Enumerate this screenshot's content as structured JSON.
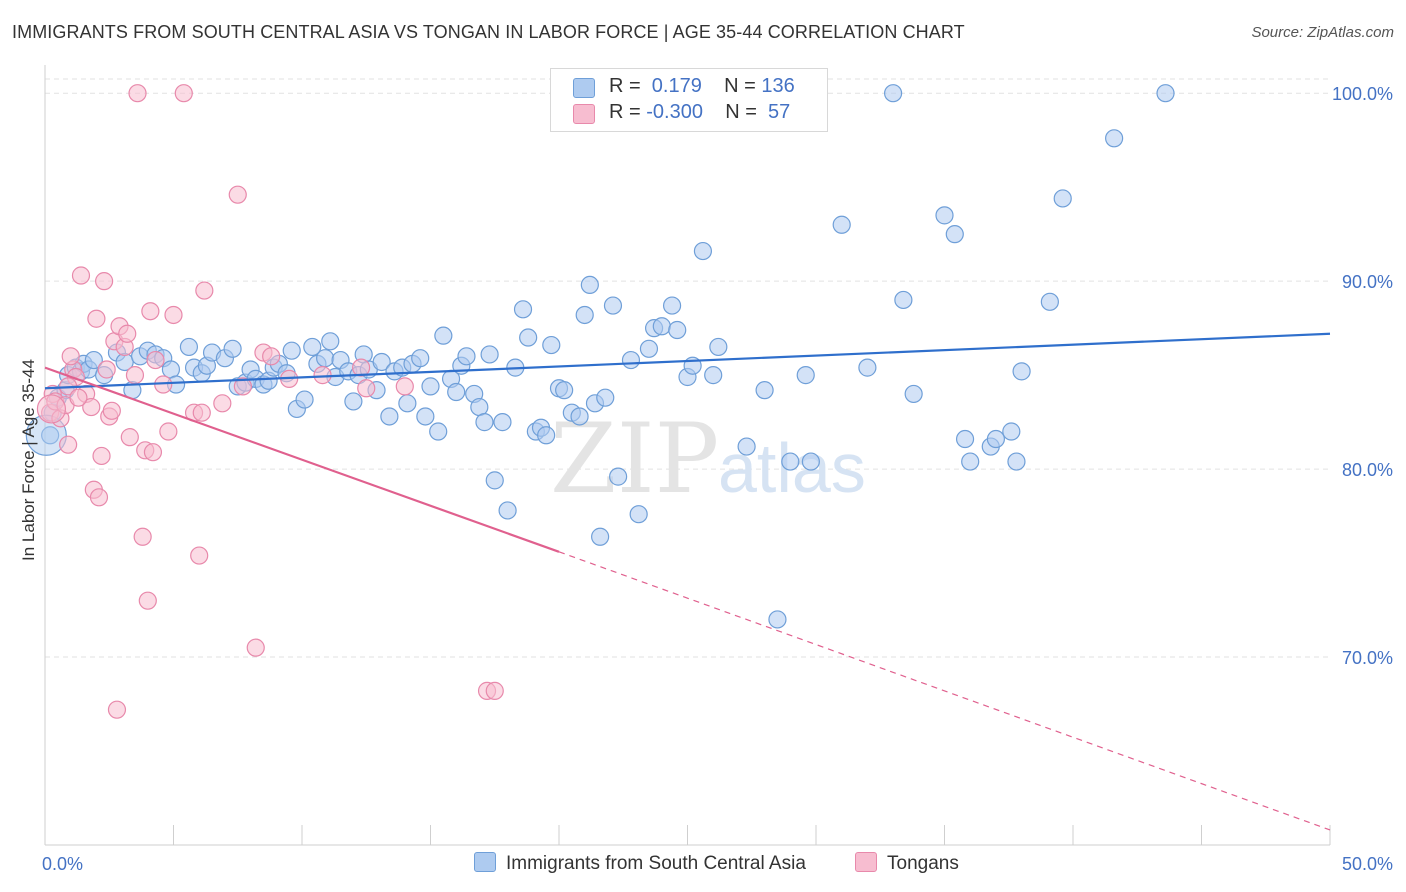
{
  "title": "IMMIGRANTS FROM SOUTH CENTRAL ASIA VS TONGAN IN LABOR FORCE | AGE 35-44 CORRELATION CHART",
  "source": "Source: ZipAtlas.com",
  "watermark": {
    "zip": "ZIP",
    "atlas": "atlas"
  },
  "colors": {
    "blue_fill": "#aecbf0",
    "blue_stroke": "#6f9fd8",
    "blue_line": "#2f6fcc",
    "pink_fill": "#f7bdd0",
    "pink_stroke": "#e889ab",
    "pink_line": "#e0608e",
    "axis_text": "#4472c4",
    "grid": "#e2e2e2"
  },
  "legend": {
    "rows": [
      {
        "r_label": "R = ",
        "r_value": " 0.179",
        "n_label": "N = ",
        "n_value": "136"
      },
      {
        "r_label": "R = ",
        "r_value": "-0.300",
        "n_label": "N = ",
        "n_value": " 57"
      }
    ]
  },
  "bottom_legend": [
    "Immigrants from South Central Asia",
    "Tongans"
  ],
  "chart_data": {
    "type": "scatter",
    "title": "IMMIGRANTS FROM SOUTH CENTRAL ASIA VS TONGAN IN LABOR FORCE | AGE 35-44 CORRELATION CHART",
    "xlabel": "",
    "ylabel": "In Labor Force | Age 35-44",
    "xlim": [
      0,
      50
    ],
    "ylim": [
      60,
      101.5
    ],
    "x_tick_labels": [
      "0.0%",
      "50.0%"
    ],
    "y_ticks": [
      70,
      80,
      90,
      100
    ],
    "y_tick_labels": [
      "70.0%",
      "80.0%",
      "90.0%",
      "100.0%"
    ],
    "grid": true,
    "series": [
      {
        "name": "Immigrants from South Central Asia",
        "R": 0.179,
        "N": 136,
        "trend": {
          "x": [
            0,
            50
          ],
          "y": [
            84.3,
            87.2
          ]
        },
        "points": [
          [
            0.2,
            81.8
          ],
          [
            0.3,
            83.0
          ],
          [
            0.5,
            83.8
          ],
          [
            0.8,
            84.2
          ],
          [
            0.9,
            85.0
          ],
          [
            1.2,
            85.4
          ],
          [
            1.4,
            85.2
          ],
          [
            1.5,
            85.6
          ],
          [
            1.7,
            85.3
          ],
          [
            1.9,
            85.8
          ],
          [
            2.3,
            85.0
          ],
          [
            2.8,
            86.2
          ],
          [
            3.1,
            85.7
          ],
          [
            3.4,
            84.2
          ],
          [
            3.7,
            86.0
          ],
          [
            4.0,
            86.3
          ],
          [
            4.3,
            86.1
          ],
          [
            4.6,
            85.9
          ],
          [
            4.9,
            85.3
          ],
          [
            5.1,
            84.5
          ],
          [
            5.6,
            86.5
          ],
          [
            5.8,
            85.4
          ],
          [
            6.1,
            85.1
          ],
          [
            6.3,
            85.5
          ],
          [
            6.5,
            86.2
          ],
          [
            7.0,
            85.9
          ],
          [
            7.3,
            86.4
          ],
          [
            7.5,
            84.4
          ],
          [
            7.8,
            84.6
          ],
          [
            8.0,
            85.3
          ],
          [
            8.2,
            84.8
          ],
          [
            8.5,
            84.5
          ],
          [
            8.7,
            84.7
          ],
          [
            8.9,
            85.4
          ],
          [
            9.1,
            85.6
          ],
          [
            9.4,
            85.1
          ],
          [
            9.6,
            86.3
          ],
          [
            9.8,
            83.2
          ],
          [
            10.1,
            83.7
          ],
          [
            10.4,
            86.5
          ],
          [
            10.6,
            85.6
          ],
          [
            10.9,
            85.9
          ],
          [
            11.1,
            86.8
          ],
          [
            11.3,
            84.9
          ],
          [
            11.5,
            85.8
          ],
          [
            11.8,
            85.2
          ],
          [
            12.0,
            83.6
          ],
          [
            12.2,
            85.0
          ],
          [
            12.4,
            86.1
          ],
          [
            12.6,
            85.3
          ],
          [
            12.9,
            84.2
          ],
          [
            13.1,
            85.7
          ],
          [
            13.4,
            82.8
          ],
          [
            13.6,
            85.2
          ],
          [
            13.9,
            85.4
          ],
          [
            14.1,
            83.5
          ],
          [
            14.3,
            85.6
          ],
          [
            14.6,
            85.9
          ],
          [
            14.8,
            82.8
          ],
          [
            15.0,
            84.4
          ],
          [
            15.3,
            82.0
          ],
          [
            15.5,
            87.1
          ],
          [
            15.8,
            84.8
          ],
          [
            16.0,
            84.1
          ],
          [
            16.2,
            85.5
          ],
          [
            16.4,
            86.0
          ],
          [
            16.7,
            84.0
          ],
          [
            16.9,
            83.3
          ],
          [
            17.1,
            82.5
          ],
          [
            17.3,
            86.1
          ],
          [
            17.5,
            79.4
          ],
          [
            17.8,
            82.5
          ],
          [
            18.0,
            77.8
          ],
          [
            18.3,
            85.4
          ],
          [
            18.6,
            88.5
          ],
          [
            18.8,
            87.0
          ],
          [
            19.1,
            82.0
          ],
          [
            19.3,
            82.2
          ],
          [
            19.5,
            81.8
          ],
          [
            19.7,
            86.6
          ],
          [
            20.0,
            84.3
          ],
          [
            20.2,
            84.2
          ],
          [
            20.5,
            83.0
          ],
          [
            20.8,
            82.8
          ],
          [
            21.0,
            88.2
          ],
          [
            21.2,
            89.8
          ],
          [
            21.4,
            83.5
          ],
          [
            21.6,
            76.4
          ],
          [
            21.8,
            83.8
          ],
          [
            22.1,
            88.7
          ],
          [
            22.3,
            79.6
          ],
          [
            22.8,
            85.8
          ],
          [
            23.1,
            77.6
          ],
          [
            23.5,
            86.4
          ],
          [
            23.7,
            87.5
          ],
          [
            24.0,
            87.6
          ],
          [
            24.4,
            88.7
          ],
          [
            24.6,
            87.4
          ],
          [
            25.0,
            84.9
          ],
          [
            25.2,
            85.5
          ],
          [
            25.6,
            91.6
          ],
          [
            26.0,
            85.0
          ],
          [
            26.2,
            86.5
          ],
          [
            27.3,
            81.2
          ],
          [
            28.0,
            84.2
          ],
          [
            28.5,
            72.0
          ],
          [
            29.0,
            80.4
          ],
          [
            29.6,
            85.0
          ],
          [
            29.8,
            80.4
          ],
          [
            31.0,
            93.0
          ],
          [
            32.0,
            85.4
          ],
          [
            33.0,
            100.0
          ],
          [
            33.4,
            89.0
          ],
          [
            33.8,
            84.0
          ],
          [
            35.0,
            93.5
          ],
          [
            35.4,
            92.5
          ],
          [
            35.8,
            81.6
          ],
          [
            36.0,
            80.4
          ],
          [
            36.8,
            81.2
          ],
          [
            37.0,
            81.6
          ],
          [
            37.6,
            82.0
          ],
          [
            37.8,
            80.4
          ],
          [
            38.0,
            85.2
          ],
          [
            39.1,
            88.9
          ],
          [
            39.6,
            94.4
          ],
          [
            41.6,
            97.6
          ],
          [
            43.6,
            100.0
          ]
        ]
      },
      {
        "name": "Tongans",
        "R": -0.3,
        "N": 57,
        "trend": {
          "x": [
            0,
            20
          ],
          "y": [
            85.4,
            75.6
          ]
        },
        "trend_dashed": {
          "x": [
            20,
            50
          ],
          "y": [
            75.6,
            60.8
          ]
        },
        "points": [
          [
            0.2,
            83.0
          ],
          [
            0.3,
            84.0
          ],
          [
            0.4,
            83.6
          ],
          [
            0.6,
            82.7
          ],
          [
            0.8,
            83.4
          ],
          [
            0.9,
            81.3
          ],
          [
            1.1,
            85.3
          ],
          [
            1.2,
            84.9
          ],
          [
            1.4,
            90.3
          ],
          [
            1.6,
            84.0
          ],
          [
            1.8,
            83.3
          ],
          [
            1.9,
            78.9
          ],
          [
            2.0,
            88.0
          ],
          [
            2.1,
            78.5
          ],
          [
            2.2,
            80.7
          ],
          [
            2.3,
            90.0
          ],
          [
            2.4,
            85.3
          ],
          [
            2.5,
            82.8
          ],
          [
            2.6,
            83.1
          ],
          [
            2.7,
            86.8
          ],
          [
            2.8,
            67.2
          ],
          [
            2.9,
            87.6
          ],
          [
            3.1,
            86.5
          ],
          [
            3.2,
            87.2
          ],
          [
            3.3,
            81.7
          ],
          [
            3.5,
            85.0
          ],
          [
            3.6,
            100.0
          ],
          [
            3.8,
            76.4
          ],
          [
            3.9,
            81.0
          ],
          [
            4.0,
            73.0
          ],
          [
            4.1,
            88.4
          ],
          [
            4.2,
            80.9
          ],
          [
            4.3,
            85.8
          ],
          [
            4.6,
            84.5
          ],
          [
            4.8,
            82.0
          ],
          [
            5.0,
            88.2
          ],
          [
            5.4,
            100.0
          ],
          [
            5.8,
            83.0
          ],
          [
            6.0,
            75.4
          ],
          [
            6.1,
            83.0
          ],
          [
            6.2,
            89.5
          ],
          [
            6.9,
            83.5
          ],
          [
            7.5,
            94.6
          ],
          [
            7.7,
            84.4
          ],
          [
            8.2,
            70.5
          ],
          [
            8.5,
            86.2
          ],
          [
            8.8,
            86.0
          ],
          [
            9.5,
            84.8
          ],
          [
            10.8,
            85.0
          ],
          [
            12.3,
            85.4
          ],
          [
            12.5,
            84.3
          ],
          [
            14.0,
            84.4
          ],
          [
            17.2,
            68.2
          ],
          [
            17.5,
            68.2
          ],
          [
            0.9,
            84.4
          ],
          [
            1.0,
            86.0
          ],
          [
            1.3,
            83.8
          ]
        ]
      }
    ]
  }
}
